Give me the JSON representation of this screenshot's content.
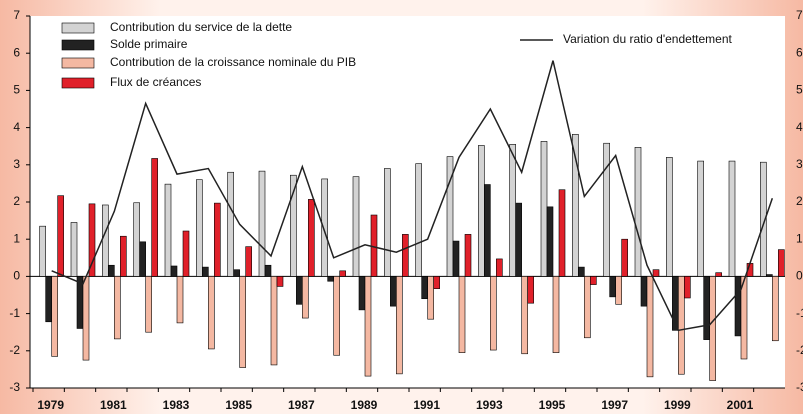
{
  "chart_data": {
    "type": "bar",
    "categories": [
      "1979",
      null,
      "1981",
      null,
      "1983",
      null,
      "1985",
      null,
      "1987",
      null,
      "1989",
      null,
      "1991",
      null,
      "1993",
      null,
      "1995",
      null,
      "1997",
      null,
      "1999",
      null,
      "2001",
      null
    ],
    "series": [
      {
        "name": "Contribution du service de la dette",
        "color": "#d3d3d3",
        "values": [
          1.35,
          1.45,
          1.92,
          1.98,
          2.48,
          2.6,
          2.8,
          2.83,
          2.72,
          2.62,
          2.68,
          2.9,
          3.03,
          3.22,
          3.52,
          3.55,
          3.63,
          3.82,
          3.58,
          3.47,
          3.2,
          3.1,
          3.1,
          3.07
        ]
      },
      {
        "name": "Solde primaire",
        "color": "#222222",
        "values": [
          -1.22,
          -1.4,
          0.3,
          0.93,
          0.28,
          0.25,
          0.18,
          0.3,
          -0.75,
          -0.13,
          -0.9,
          -0.8,
          -0.6,
          0.95,
          2.47,
          1.97,
          1.87,
          0.25,
          -0.55,
          -0.8,
          -1.45,
          -1.7,
          -1.6,
          0.05
        ]
      },
      {
        "name": "Contribution de la croissance nominale du PIB",
        "color": "#f4b8a2",
        "values": [
          -2.15,
          -2.25,
          -1.68,
          -1.5,
          -1.25,
          -1.95,
          -2.45,
          -2.38,
          -1.12,
          -2.12,
          -2.68,
          -2.62,
          -1.15,
          -2.05,
          -1.98,
          -2.08,
          -2.05,
          -1.65,
          -0.75,
          -2.7,
          -2.63,
          -2.8,
          -2.22,
          -1.73
        ]
      },
      {
        "name": "Flux de créances",
        "color": "#e0202a",
        "values": [
          2.17,
          1.95,
          1.08,
          3.17,
          1.22,
          1.97,
          0.8,
          -0.27,
          2.07,
          0.15,
          1.65,
          1.13,
          -0.33,
          1.13,
          0.47,
          -0.72,
          2.33,
          -0.22,
          1.0,
          0.18,
          -0.58,
          0.1,
          0.35,
          0.72
        ]
      },
      {
        "name": "Variation du ratio d'endettement",
        "type": "line",
        "color": "#222222",
        "values": [
          0.15,
          -0.2,
          1.75,
          4.65,
          2.75,
          2.9,
          1.4,
          0.55,
          2.95,
          0.5,
          0.85,
          0.65,
          1.0,
          3.2,
          4.5,
          2.8,
          5.8,
          2.15,
          3.25,
          0.3,
          -1.45,
          -1.3,
          -0.35,
          2.1
        ]
      }
    ],
    "ylim": [
      -3,
      7
    ],
    "yticks": [
      -3,
      -2,
      -1,
      0,
      1,
      2,
      3,
      4,
      5,
      6,
      7
    ],
    "y2lim": [
      -3,
      7
    ],
    "y2ticks": [
      -3,
      -2,
      -1,
      0,
      1,
      2,
      3,
      4,
      5,
      6,
      7
    ]
  }
}
